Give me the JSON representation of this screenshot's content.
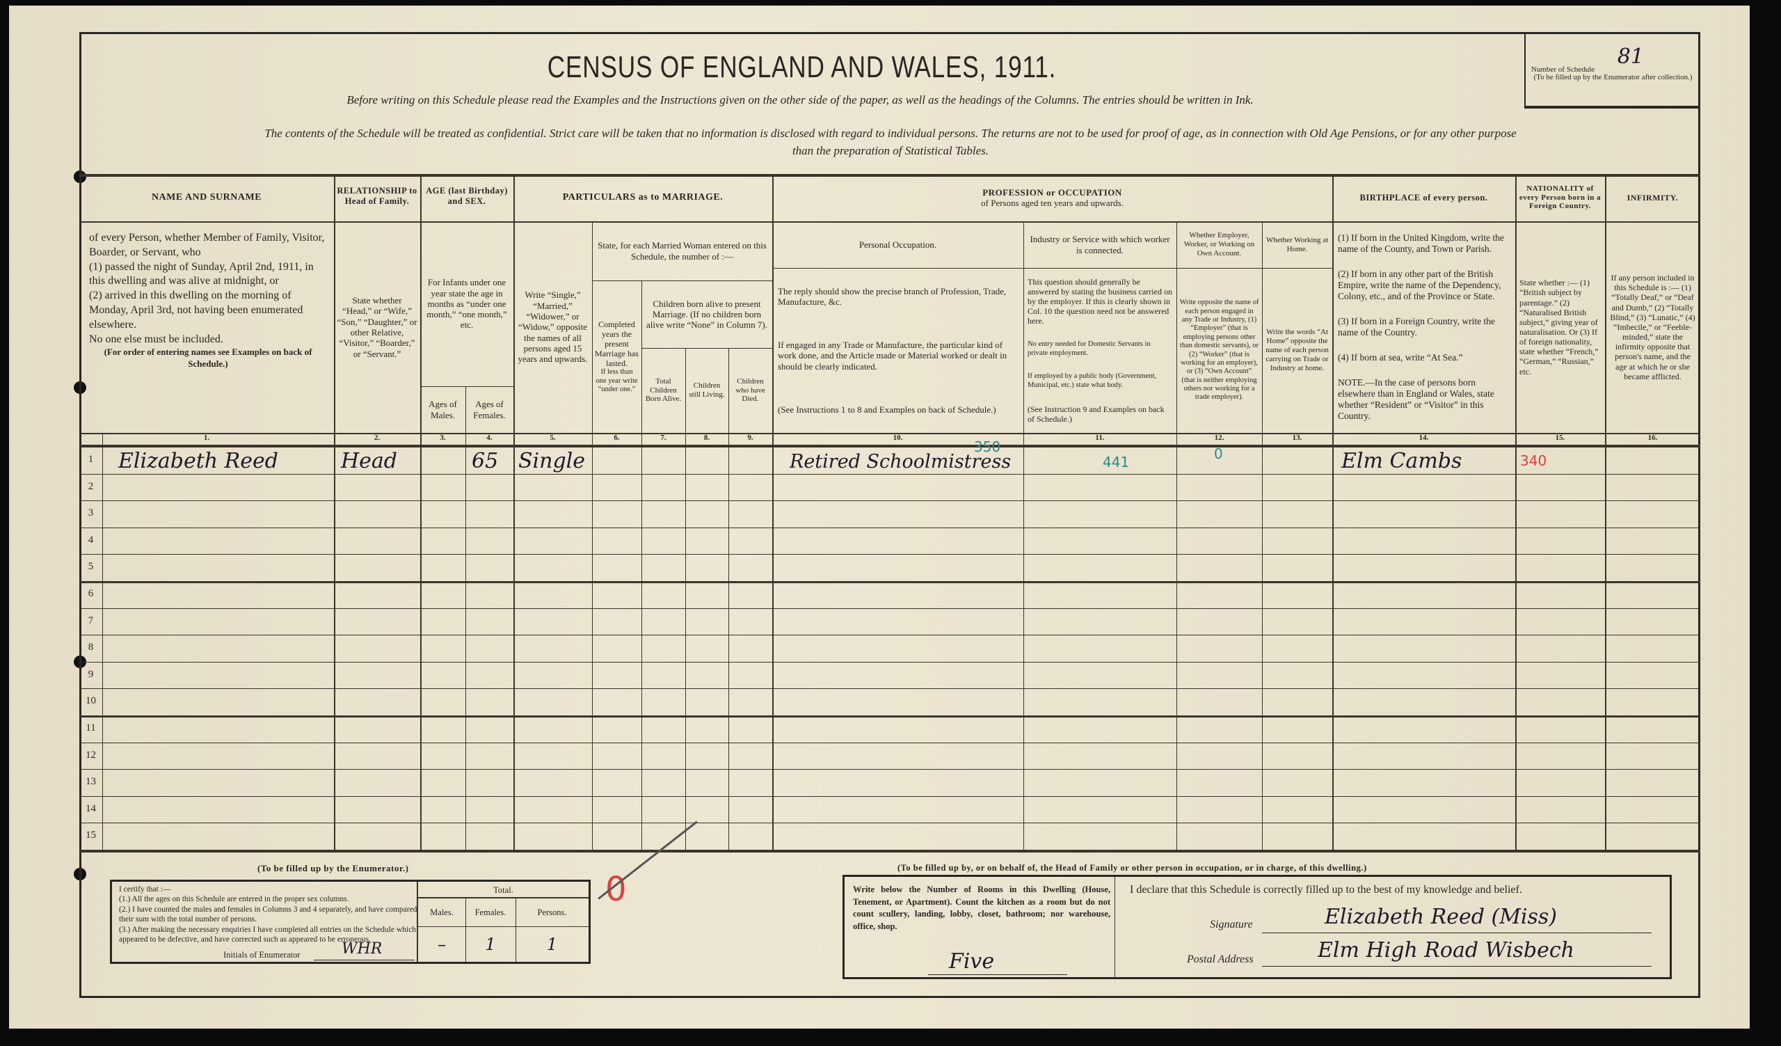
{
  "header": {
    "title": "CENSUS OF ENGLAND AND WALES, 1911.",
    "instruction": "Before writing on this Schedule please read the Examples and the Instructions given on the other side of the paper, as well as the headings of the Columns. The entries should be written in Ink.",
    "confidential_1": "The contents of the Schedule will be treated as confidential. Strict care will be taken that no information is disclosed with regard to individual persons. The returns are not to be used for proof of age, as in connection with Old Age Pensions, or for any other purpose",
    "confidential_2": "than the preparation of Statistical Tables.",
    "schedule_label": "Number of Schedule",
    "schedule_number": "81",
    "schedule_note": "(To be filled up by the Enumerator after collection.)"
  },
  "columns": {
    "name_title": "NAME AND SURNAME",
    "name_desc_1": "of every Person, whether Member of Family, Visitor, Boarder, or Servant, who",
    "name_desc_2": "(1) passed the night of Sunday, April 2nd, 1911, in this dwelling and was alive at midnight, or",
    "name_desc_3": "(2) arrived in this dwelling on the morning of Monday, April 3rd, not having been enumerated elsewhere.",
    "name_desc_4": "No one else must be included.",
    "name_desc_5": "(For order of entering names see Examples on back of Schedule.)",
    "rel_title": "RELATIONSHIP to Head of Family.",
    "rel_desc": "State whether “Head,” or “Wife,” “Son,” “Daughter,” or other Relative, “Visitor,” “Boarder,” or “Servant.”",
    "age_title": "AGE (last Birthday) and SEX.",
    "age_desc": "For Infants under one year state the age in months as “under one month,” “one month,” etc.",
    "age_males": "Ages of Males.",
    "age_females": "Ages of Females.",
    "marriage_title": "PARTICULARS as to MARRIAGE.",
    "marriage_desc": "Write “Single,” “Married,” “Widower,” or “Widow,” opposite the names of all persons aged 15 years and upwards.",
    "married_woman": "State, for each Married Woman entered on this Schedule, the number of :—",
    "completed_years": "Completed years the present Marriage has lasted.",
    "completed_years_note": "If less than one year write “under one.”",
    "children_title": "Children born alive to present Marriage. (If no children born alive write “None” in Column 7).",
    "children_total": "Total Children Born Alive.",
    "children_living": "Children still Living.",
    "children_died": "Children who have Died.",
    "prof_title": "PROFESSION or OCCUPATION",
    "prof_sub": "of Persons aged ten years and upwards.",
    "personal_occ": "Personal Occupation.",
    "personal_occ_desc_1": "The reply should show the precise branch of Profession, Trade, Manufacture, &c.",
    "personal_occ_desc_2": "If engaged in any Trade or Manufacture, the particular kind of work done, and the Article made or Material worked or dealt in should be clearly indicated.",
    "personal_occ_desc_3": "(See Instructions 1 to 8 and Examples on back of Schedule.)",
    "industry": "Industry or Service with which worker is connected.",
    "industry_desc_1": "This question should generally be answered by stating the business carried on by the employer. If this is clearly shown in Col. 10 the question need not be answered here.",
    "industry_desc_2": "No entry needed for Domestic Servants in private employment.",
    "industry_desc_3": "If employed by a public body (Government, Municipal, etc.) state what body.",
    "industry_desc_4": "(See Instruction 9 and Examples on back of Schedule.)",
    "employer": "Whether Employer, Worker, or Working on Own Account.",
    "employer_desc": "Write opposite the name of each person engaged in any Trade or Industry, (1) “Employer” (that is employing persons other than domestic servants), or (2) “Worker” (that is working for an employer), or (3) “Own Account” (that is neither employing others nor working for a trade employer).",
    "home": "Whether Working at Home.",
    "home_desc": "Write the words “At Home” opposite the name of each person carrying on Trade or Industry at home.",
    "birth_title": "BIRTHPLACE of every person.",
    "birth_desc_1": "(1) If born in the United Kingdom, write the name of the County, and Town or Parish.",
    "birth_desc_2": "(2) If born in any other part of the British Empire, write the name of the Dependency, Colony, etc., and of the Province or State.",
    "birth_desc_3": "(3) If born in a Foreign Country, write the name of the Country.",
    "birth_desc_4": "(4) If born at sea, write “At Sea.”",
    "birth_desc_5": "NOTE.—In the case of persons born elsewhere than in England or Wales, state whether “Resident” or “Visitor” in this Country.",
    "nat_title": "NATIONALITY of every Person born in a Foreign Country.",
    "nat_desc": "State whether :— (1) “British subject by parentage.” (2) “Naturalised British subject,” giving year of naturalisation. Or (3) If of foreign nationality, state whether “French,” “German,” “Russian,” etc.",
    "inf_title": "INFIRMITY.",
    "inf_desc": "If any person included in this Schedule is :— (1) “Totally Deaf,” or “Deaf and Dumb,” (2) “Totally Blind,” (3) “Lunatic,” (4) “Imbecile,” or “Feeble-minded,” state the infirmity opposite that person's name, and the age at which he or she became afflicted.",
    "numbers": [
      "1.",
      "2.",
      "3.",
      "4.",
      "5.",
      "6.",
      "7.",
      "8.",
      "9.",
      "10.",
      "11.",
      "12.",
      "13.",
      "14.",
      "15.",
      "16."
    ]
  },
  "row_numbers": [
    "1",
    "2",
    "3",
    "4",
    "5",
    "6",
    "7",
    "8",
    "9",
    "10",
    "11",
    "12",
    "13",
    "14",
    "15"
  ],
  "entries": [
    {
      "name": "Elizabeth Reed",
      "relationship": "Head",
      "age_male": "",
      "age_female": "65",
      "marriage": "Single",
      "occupation": "Retired Schoolmistress",
      "occupation_code": "350",
      "industry_code": "441",
      "employer_code": "0",
      "birthplace": "Elm Cambs",
      "nationality_code": "340"
    }
  ],
  "enumerator": {
    "label": "(To be filled up by the Enumerator.)",
    "certify": "I certify that :—",
    "item_1": "(1.) All the ages on this Schedule are entered in the proper sex columns.",
    "item_2": "(2.) I have counted the males and females in Columns 3 and 4 separately, and have compared their sum with the total number of persons.",
    "item_3": "(3.) After making the necessary enquiries I have completed all entries on the Schedule which appeared to be defective, and have corrected such as appeared to be erroneous.",
    "initials_label": "Initials of Enumerator",
    "initials": "WHR",
    "total_label": "Total.",
    "males_label": "Males.",
    "females_label": "Females.",
    "persons_label": "Persons.",
    "males": "–",
    "females": "1",
    "persons": "1",
    "red_mark": "0"
  },
  "head": {
    "label": "(To be filled up by, or on behalf of, the Head of Family or other person in occupation, or in charge, of this dwelling.)",
    "rooms_instruction": "Write below the Number of Rooms in this Dwelling (House, Tenement, or Apartment). Count the kitchen as a room but do not count scullery, landing, lobby, closet, bathroom; nor warehouse, office, shop.",
    "rooms": "Five",
    "declaration": "I declare that this Schedule is correctly filled up to the best of my knowledge and belief.",
    "signature_label": "Signature",
    "signature": "Elizabeth Reed (Miss)",
    "address_label": "Postal Address",
    "address": "Elm High Road Wisbech"
  },
  "colors": {
    "paper": "#ece5d0",
    "ink": "#2a2622",
    "teal_annotation": "#2a8a86",
    "red_annotation": "#d8433f"
  }
}
